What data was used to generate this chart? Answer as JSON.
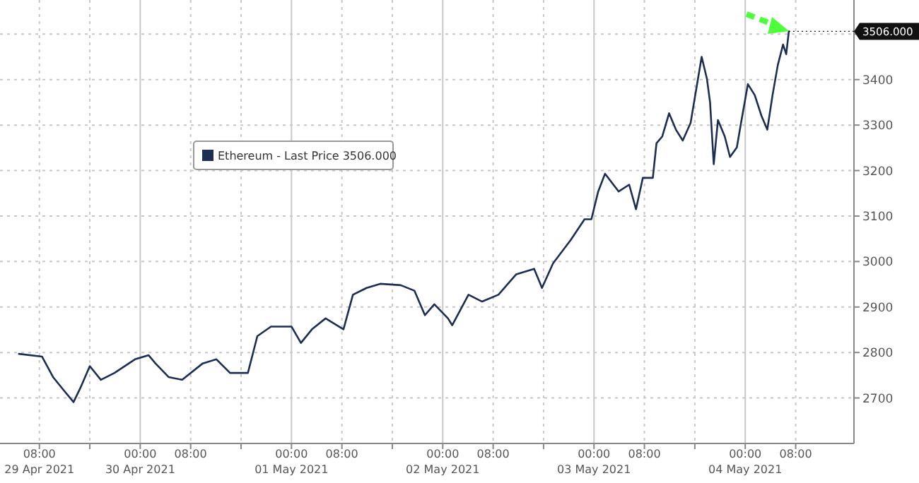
{
  "chart_data": {
    "type": "line",
    "x": [
      "2021-04-29T04:45",
      "2021-04-29T08:25",
      "2021-04-29T10:10",
      "2021-04-29T11:55",
      "2021-04-29T13:25",
      "2021-04-29T14:30",
      "2021-04-29T16:00",
      "2021-04-29T17:45",
      "2021-04-29T19:55",
      "2021-04-29T23:10",
      "2021-04-30T01:20",
      "2021-04-30T02:25",
      "2021-04-30T04:30",
      "2021-04-30T06:40",
      "2021-04-30T09:55",
      "2021-04-30T12:05",
      "2021-04-30T14:15",
      "2021-04-30T17:05",
      "2021-04-30T18:35",
      "2021-04-30T20:45",
      "2021-05-01T00:00",
      "2021-05-01T01:30",
      "2021-05-01T03:15",
      "2021-05-01T05:25",
      "2021-05-01T08:15",
      "2021-05-01T09:45",
      "2021-05-01T11:55",
      "2021-05-01T14:05",
      "2021-05-01T17:20",
      "2021-05-01T19:30",
      "2021-05-01T21:10",
      "2021-05-01T22:40",
      "2021-05-02T00:50",
      "2021-05-02T01:30",
      "2021-05-02T04:05",
      "2021-05-02T06:15",
      "2021-05-02T08:50",
      "2021-05-02T11:40",
      "2021-05-02T14:30",
      "2021-05-02T15:45",
      "2021-05-02T17:30",
      "2021-05-02T20:20",
      "2021-05-02T22:30",
      "2021-05-02T23:35",
      "2021-05-03T00:40",
      "2021-05-03T01:45",
      "2021-05-03T03:55",
      "2021-05-03T05:35",
      "2021-05-03T06:40",
      "2021-05-03T07:45",
      "2021-05-03T09:20",
      "2021-05-03T09:55",
      "2021-05-03T10:50",
      "2021-05-03T11:55",
      "2021-05-03T13:00",
      "2021-05-03T14:05",
      "2021-05-03T15:20",
      "2021-05-03T16:25",
      "2021-05-03T17:05",
      "2021-05-03T17:55",
      "2021-05-03T18:25",
      "2021-05-03T19:00",
      "2021-05-03T19:40",
      "2021-05-03T20:45",
      "2021-05-03T21:35",
      "2021-05-03T22:40",
      "2021-05-03T23:20",
      "2021-05-04T00:25",
      "2021-05-04T01:30",
      "2021-05-04T02:35",
      "2021-05-04T03:30",
      "2021-05-04T04:20",
      "2021-05-04T05:10",
      "2021-05-04T06:00",
      "2021-05-04T06:30",
      "2021-05-04T06:55"
    ],
    "series": [
      {
        "name": "Ethereum - Last Price 3506.000",
        "color": "#1c2e52",
        "values": [
          2797,
          2791,
          2746,
          2716,
          2691,
          2722,
          2770,
          2740,
          2755,
          2785,
          2794,
          2776,
          2746,
          2740,
          2776,
          2785,
          2755,
          2755,
          2836,
          2857,
          2857,
          2821,
          2851,
          2875,
          2851,
          2927,
          2942,
          2951,
          2948,
          2936,
          2882,
          2906,
          2875,
          2860,
          2927,
          2912,
          2927,
          2972,
          2984,
          2942,
          2996,
          3048,
          3093,
          3093,
          3154,
          3193,
          3154,
          3169,
          3115,
          3184,
          3184,
          3260,
          3275,
          3326,
          3290,
          3266,
          3305,
          3395,
          3450,
          3402,
          3350,
          3214,
          3311,
          3275,
          3230,
          3251,
          3305,
          3390,
          3366,
          3320,
          3290,
          3366,
          3432,
          3477,
          3456,
          3506
        ]
      }
    ],
    "xlim": [
      "2021-04-29T01:45",
      "2021-05-04T17:15"
    ],
    "xticks": [
      {
        "value": "2021-04-29T08:00",
        "label": "08:00\n29 Apr 2021"
      },
      {
        "value": "2021-04-29T16:00",
        "label": null
      },
      {
        "value": "2021-04-30T00:00",
        "label": "00:00\n30 Apr 2021"
      },
      {
        "value": "2021-04-30T08:00",
        "label": "08:00"
      },
      {
        "value": "2021-04-30T16:00",
        "label": null
      },
      {
        "value": "2021-05-01T00:00",
        "label": "00:00\n01 May 2021"
      },
      {
        "value": "2021-05-01T08:00",
        "label": "08:00"
      },
      {
        "value": "2021-05-01T16:00",
        "label": null
      },
      {
        "value": "2021-05-02T00:00",
        "label": "00:00\n02 May 2021"
      },
      {
        "value": "2021-05-02T08:00",
        "label": "08:00"
      },
      {
        "value": "2021-05-02T16:00",
        "label": null
      },
      {
        "value": "2021-05-03T00:00",
        "label": "00:00\n03 May 2021"
      },
      {
        "value": "2021-05-03T08:00",
        "label": "08:00"
      },
      {
        "value": "2021-05-03T16:00",
        "label": null
      },
      {
        "value": "2021-05-04T00:00",
        "label": "00:00\n04 May 2021"
      },
      {
        "value": "2021-05-04T08:00",
        "label": "08:00"
      }
    ],
    "ylim": [
      2600,
      3575
    ],
    "yticks": [
      2700,
      2800,
      2900,
      3000,
      3100,
      3200,
      3300,
      3400,
      {
        "value": 3500,
        "label": null
      }
    ],
    "annotations": [
      {
        "text": "3506.000",
        "x": "2021-05-04T06:55",
        "y": 3506
      }
    ],
    "grid": true,
    "legend": "top left",
    "line_style": "solid",
    "marker": "none"
  }
}
